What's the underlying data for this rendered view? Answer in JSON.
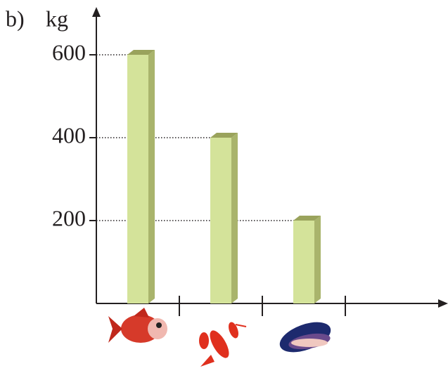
{
  "chart_data": {
    "type": "bar",
    "label": "b)",
    "y_label": "kg",
    "categories": [
      null,
      null,
      null
    ],
    "values": [
      600,
      400,
      200
    ],
    "color": "#d4e39a",
    "ylim": [
      0,
      700
    ],
    "yticks": [
      200,
      400,
      600
    ],
    "grid": true
  }
}
